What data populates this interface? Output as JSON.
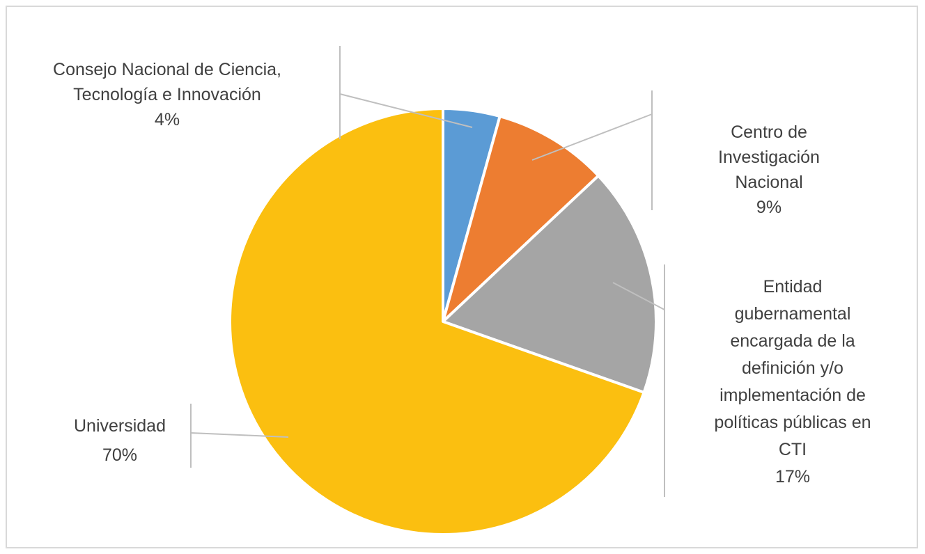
{
  "chart_data": {
    "type": "pie",
    "title": "",
    "start_angle_deg": 0,
    "direction": "clockwise",
    "slices": [
      {
        "label_lines": [
          "Consejo Nacional de Ciencia,",
          "Tecnología e Innovación"
        ],
        "percent_label": "4%",
        "value": 4.3,
        "color": "#5b9bd5"
      },
      {
        "label_lines": [
          "Centro de",
          "Investigación",
          "Nacional"
        ],
        "percent_label": "9%",
        "value": 8.7,
        "color": "#ed7d31"
      },
      {
        "label_lines": [
          "Entidad",
          "gubernamental",
          "encargada de la",
          "definición y/o",
          "implementación de",
          "políticas públicas en",
          "CTI"
        ],
        "percent_label": "17%",
        "value": 17.4,
        "color": "#a5a5a5"
      },
      {
        "label_lines": [
          "Universidad"
        ],
        "percent_label": "70%",
        "value": 69.6,
        "color": "#fbbf10"
      }
    ],
    "legend": "none",
    "data_labels": "outside-with-leader-lines"
  }
}
